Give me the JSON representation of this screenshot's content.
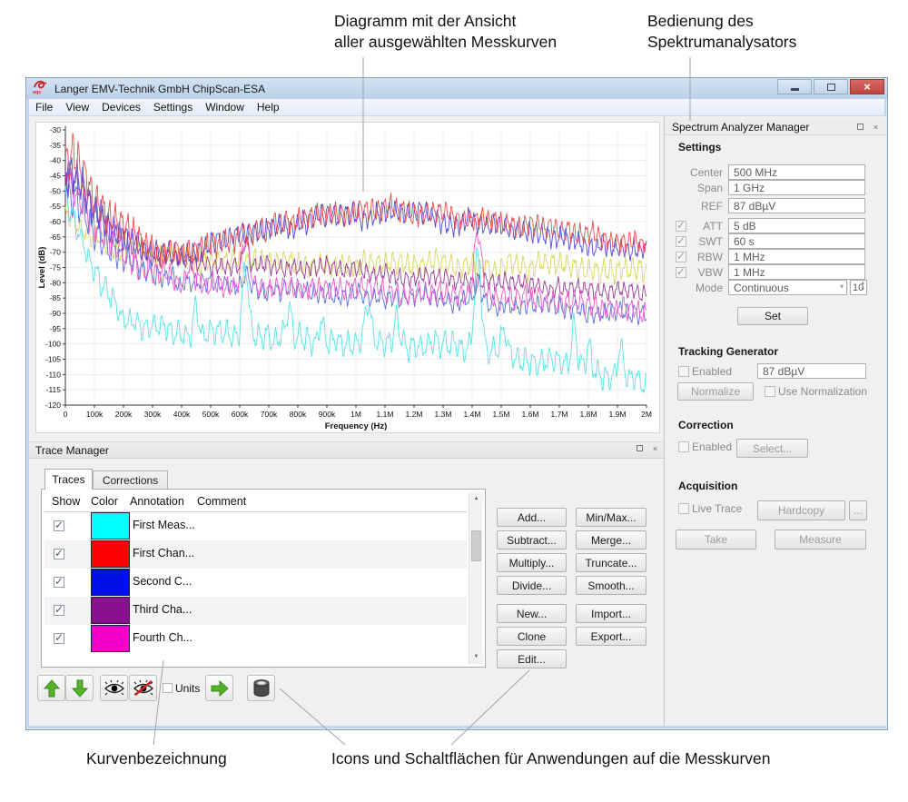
{
  "annotations": {
    "diagram_line1": "Diagramm mit der Ansicht",
    "diagram_line2": "aller ausgewählten Messkurven",
    "spectrum_line1": "Bedienung des",
    "spectrum_line2": "Spektrumanalysators",
    "curve_label": "Kurvenbezeichnung",
    "icons_label": "Icons und Schaltflächen für Anwendungen auf die Messkurven"
  },
  "window": {
    "title": "Langer EMV-Technik GmbH ChipScan-ESA",
    "logo_text": "xqc",
    "menu": [
      "File",
      "View",
      "Devices",
      "Settings",
      "Window",
      "Help"
    ]
  },
  "spectrum_panel": {
    "title": "Spectrum Analyzer Manager",
    "settings": {
      "heading": "Settings",
      "center_label": "Center",
      "center_value": "500 MHz",
      "span_label": "Span",
      "span_value": "1 GHz",
      "ref_label": "REF",
      "ref_value": "87 dBµV",
      "att_label": "ATT",
      "att_value": "5 dB",
      "att_checked": true,
      "swt_label": "SWT",
      "swt_value": "60 s",
      "swt_checked": true,
      "rbw_label": "RBW",
      "rbw_value": "1 MHz",
      "rbw_checked": true,
      "vbw_label": "VBW",
      "vbw_value": "1 MHz",
      "vbw_checked": true,
      "mode_label": "Mode",
      "mode_value": "Continuous",
      "mode_count": "10",
      "set_button": "Set"
    },
    "tracking": {
      "heading": "Tracking Generator",
      "enabled_label": "Enabled",
      "enabled_checked": false,
      "level_value": "87 dBµV",
      "normalize_button": "Normalize",
      "use_norm_label": "Use Normalization",
      "use_norm_checked": false
    },
    "correction": {
      "heading": "Correction",
      "enabled_label": "Enabled",
      "enabled_checked": false,
      "select_button": "Select..."
    },
    "acquisition": {
      "heading": "Acquisition",
      "live_label": "Live Trace",
      "live_checked": false,
      "hardcopy_button": "Hardcopy",
      "more_button": "...",
      "take_button": "Take",
      "measure_button": "Measure"
    }
  },
  "trace_manager": {
    "title": "Trace Manager",
    "tabs": [
      "Traces",
      "Corrections"
    ],
    "columns": [
      "Show",
      "Color",
      "Annotation",
      "Comment"
    ],
    "rows": [
      {
        "checked": true,
        "color": "#00ffff",
        "annotation": "First Meas...",
        "comment": ""
      },
      {
        "checked": true,
        "color": "#ff0000",
        "annotation": "First Chan...",
        "comment": ""
      },
      {
        "checked": true,
        "color": "#0010e8",
        "annotation": "Second C...",
        "comment": ""
      },
      {
        "checked": true,
        "color": "#8b1090",
        "annotation": "Third Cha...",
        "comment": ""
      },
      {
        "checked": true,
        "color": "#f400c8",
        "annotation": "Fourth Ch...",
        "comment": ""
      }
    ],
    "ops": [
      "Add...",
      "Subtract...",
      "Multiply...",
      "Divide...",
      "New...",
      "Clone",
      "Edit...",
      "Min/Max...",
      "Merge...",
      "Truncate...",
      "Smooth...",
      "Import...",
      "Export..."
    ],
    "units_label": "Units",
    "units_checked": false
  },
  "chart_data": {
    "type": "line",
    "xlabel": "Frequency (Hz)",
    "ylabel": "Level (dB)",
    "xlim": [
      0,
      2000000
    ],
    "ylim": [
      -120,
      -30
    ],
    "x_ticks": [
      "0",
      "100k",
      "200k",
      "300k",
      "400k",
      "500k",
      "600k",
      "700k",
      "800k",
      "900k",
      "1M",
      "1.1M",
      "1.2M",
      "1.3M",
      "1.4M",
      "1.5M",
      "1.6M",
      "1.7M",
      "1.8M",
      "1.9M",
      "2M"
    ],
    "y_ticks": [
      -30,
      -35,
      -40,
      -45,
      -50,
      -55,
      -60,
      -65,
      -70,
      -75,
      -80,
      -85,
      -90,
      -95,
      -100,
      -105,
      -110,
      -115,
      -120
    ],
    "grid": true,
    "series": [
      {
        "name": "trace-yellow",
        "color": "#d6d455",
        "seed": 7,
        "cycles": 80,
        "phase": 1,
        "noise": 0.9,
        "base": [
          [
            0,
            -57
          ],
          [
            0.04,
            -64
          ],
          [
            0.1,
            -70
          ],
          [
            0.2,
            -73
          ],
          [
            0.4,
            -74
          ],
          [
            0.6,
            -74
          ],
          [
            0.8,
            -75
          ],
          [
            1,
            -76
          ]
        ],
        "ripple_amp": [
          [
            0,
            2.5
          ],
          [
            1,
            3
          ]
        ],
        "bumps": []
      },
      {
        "name": "Third Cha... (purple)",
        "color": "#953090",
        "seed": 11,
        "cycles": 88,
        "phase": 4,
        "noise": 0.8,
        "base": [
          [
            0,
            -43
          ],
          [
            0.03,
            -50
          ],
          [
            0.08,
            -63
          ],
          [
            0.15,
            -71
          ],
          [
            0.25,
            -74
          ],
          [
            0.45,
            -75
          ],
          [
            0.65,
            -78
          ],
          [
            0.85,
            -81
          ],
          [
            1,
            -83
          ]
        ],
        "ripple_amp": [
          [
            0,
            4
          ],
          [
            0.15,
            2.2
          ],
          [
            1,
            2.2
          ]
        ],
        "bumps": [
          [
            0.31,
            0.005,
            8
          ]
        ]
      },
      {
        "name": "trace-blue-2",
        "color": "#5566dd",
        "seed": 13,
        "cycles": 78,
        "phase": 5.2,
        "noise": 1.0,
        "base": [
          [
            0,
            -46
          ],
          [
            0.05,
            -62
          ],
          [
            0.12,
            -75
          ],
          [
            0.2,
            -80
          ],
          [
            0.35,
            -82
          ],
          [
            0.5,
            -84
          ],
          [
            0.65,
            -85.5
          ],
          [
            0.8,
            -87
          ],
          [
            1,
            -91
          ]
        ],
        "ripple_amp": [
          [
            0,
            5
          ],
          [
            0.2,
            2.2
          ],
          [
            1,
            2.4
          ]
        ],
        "bumps": [
          [
            0.31,
            0.004,
            5
          ],
          [
            0.71,
            0.005,
            6
          ]
        ]
      },
      {
        "name": "First Meas... (cyan)",
        "color": "#4be3e3",
        "seed": 23,
        "cycles": 72,
        "phase": 1.6,
        "noise": 1.2,
        "base": [
          [
            0,
            -50
          ],
          [
            0.02,
            -62
          ],
          [
            0.06,
            -82
          ],
          [
            0.1,
            -91
          ],
          [
            0.15,
            -95
          ],
          [
            0.3,
            -97
          ],
          [
            0.5,
            -99
          ],
          [
            0.7,
            -102
          ],
          [
            0.85,
            -106
          ],
          [
            1,
            -113
          ]
        ],
        "ripple_amp": [
          [
            0,
            3
          ],
          [
            1,
            3.5
          ]
        ],
        "bumps": [
          [
            0.225,
            0.004,
            9
          ],
          [
            0.31,
            0.005,
            24
          ],
          [
            0.385,
            0.004,
            10
          ],
          [
            0.44,
            0.004,
            7
          ],
          [
            0.52,
            0.005,
            13
          ],
          [
            0.57,
            0.004,
            8
          ],
          [
            0.71,
            0.006,
            32
          ],
          [
            0.755,
            0.004,
            9
          ],
          [
            0.875,
            0.005,
            13
          ],
          [
            0.9,
            0.004,
            9
          ],
          [
            0.955,
            0.004,
            10
          ]
        ]
      },
      {
        "name": "Fourth Ch... (magenta)",
        "color": "#ef52c4",
        "seed": 17,
        "cycles": 82,
        "phase": 2.8,
        "noise": 1.0,
        "base": [
          [
            0,
            -44
          ],
          [
            0.05,
            -60
          ],
          [
            0.12,
            -74
          ],
          [
            0.2,
            -79
          ],
          [
            0.35,
            -81
          ],
          [
            0.5,
            -83
          ],
          [
            0.65,
            -84
          ],
          [
            0.8,
            -86
          ],
          [
            1,
            -89
          ]
        ],
        "ripple_amp": [
          [
            0,
            5
          ],
          [
            0.2,
            2.5
          ],
          [
            1,
            2.8
          ]
        ],
        "bumps": [
          [
            0.215,
            0.005,
            6
          ],
          [
            0.31,
            0.006,
            16
          ],
          [
            0.71,
            0.006,
            20
          ]
        ]
      },
      {
        "name": "Second C... (blue)",
        "color": "#4a44cf",
        "seed": 29,
        "cycles": 95,
        "phase": 2.2,
        "noise": 1.0,
        "base": [
          [
            0,
            -45
          ],
          [
            0.013,
            -42
          ],
          [
            0.05,
            -56
          ],
          [
            0.1,
            -65
          ],
          [
            0.16,
            -71
          ],
          [
            0.22,
            -70
          ],
          [
            0.32,
            -64
          ],
          [
            0.42,
            -59
          ],
          [
            0.53,
            -57
          ],
          [
            0.63,
            -58.5
          ],
          [
            0.75,
            -61.5
          ],
          [
            0.88,
            -66
          ],
          [
            1,
            -70
          ]
        ],
        "ripple_amp": [
          [
            0,
            5
          ],
          [
            0.15,
            3
          ],
          [
            1,
            2.5
          ]
        ],
        "bumps": []
      },
      {
        "name": "First Chan... (red)",
        "color": "#e84545",
        "seed": 31,
        "cycles": 95,
        "phase": 0.5,
        "noise": 1.0,
        "base": [
          [
            0,
            -42
          ],
          [
            0.013,
            -37
          ],
          [
            0.05,
            -54
          ],
          [
            0.1,
            -63
          ],
          [
            0.16,
            -70
          ],
          [
            0.22,
            -69
          ],
          [
            0.32,
            -63
          ],
          [
            0.42,
            -58
          ],
          [
            0.53,
            -55.5
          ],
          [
            0.63,
            -57
          ],
          [
            0.75,
            -60
          ],
          [
            0.88,
            -64
          ],
          [
            1,
            -68
          ]
        ],
        "ripple_amp": [
          [
            0,
            6
          ],
          [
            0.15,
            3.2
          ],
          [
            1,
            2.6
          ]
        ],
        "bumps": []
      }
    ]
  }
}
